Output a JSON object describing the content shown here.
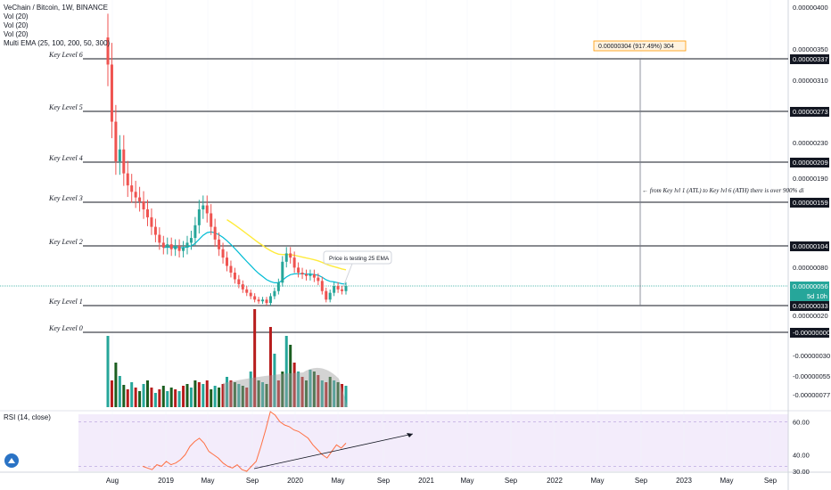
{
  "legend": {
    "title": "VeChain / Bitcoin, 1W, BINANCE",
    "line2": "Vol (20)",
    "line3": "Vol (20)",
    "line4": "Vol (20)",
    "line5": "Multi EMA (25, 100, 200, 50, 300)"
  },
  "rsi_label": "RSI (14, close)",
  "chart_data": {
    "type": "candlestick",
    "symbol": "VeChain / Bitcoin",
    "interval": "1W",
    "exchange": "BINANCE",
    "x_ticks": [
      "Aug",
      "2019",
      "May",
      "Sep",
      "2020",
      "May",
      "Sep",
      "2021",
      "May",
      "Sep",
      "2022",
      "May",
      "Sep",
      "2023",
      "May",
      "Sep"
    ],
    "price_axis_labels": [
      "0.00000400",
      "0.00000350",
      "0.00000310",
      "0.00000230",
      "0.00000190",
      "0.00000080",
      "0.00000020",
      "-0.00000030",
      "-0.00000055",
      "-0.00000077"
    ],
    "key_levels": [
      {
        "label": "Key Level 6",
        "value": "0.00000337"
      },
      {
        "label": "Key Level 5",
        "value": "0.00000273"
      },
      {
        "label": "Key Level 4",
        "value": "0.00000209"
      },
      {
        "label": "Key Level 3",
        "value": "0.00000159"
      },
      {
        "label": "Key Level 2",
        "value": "0.00000104"
      },
      {
        "label": "Key Level 1",
        "value": "0.00000033"
      },
      {
        "label": "Key Level 0",
        "value": "-0.00000000"
      }
    ],
    "current_price": "0.00000056",
    "countdown": "5d 10h",
    "measure_label": "0.00000304 (917.49%) 304",
    "annotation_arrow": "from Key lvl 1 (ATL) to Key lvl 6 (ATH)  there is over 900% di",
    "callout": "Price is testing 25 EMA",
    "rsi_ticks": [
      "60.00",
      "40.00",
      "30.00"
    ],
    "close_prices": [
      3.3e-06,
      2.6e-06,
      2.1e-06,
      2.25e-06,
      1.95e-06,
      1.8e-06,
      1.72e-06,
      1.65e-06,
      1.6e-06,
      1.5e-06,
      1.4e-06,
      1.28e-06,
      1.18e-06,
      1.08e-06,
      1.02e-06,
      1.06e-06,
      1e-06,
      1.04e-06,
      9.8e-07,
      1.02e-06,
      1.08e-06,
      1.14e-06,
      1.3e-06,
      1.5e-06,
      1.55e-06,
      1.45e-06,
      1.28e-06,
      1.12e-06,
      1e-06,
      9e-07,
      8e-07,
      7.2e-07,
      6.4e-07,
      5.8e-07,
      5.2e-07,
      4.8e-07,
      4.4e-07,
      4e-07,
      3.8e-07,
      4e-07,
      3.6e-07,
      4.4e-07,
      5e-07,
      6e-07,
      8.5e-07,
      9.5e-07,
      9e-07,
      7.8e-07,
      7.2e-07,
      7e-07,
      6.8e-07,
      7e-07,
      6.6e-07,
      6.2e-07,
      5e-07,
      4e-07,
      4.8e-07,
      5.6e-07,
      5.2e-07,
      5e-07,
      5.6e-07
    ],
    "rsi_values": [
      33,
      32,
      31,
      34,
      33,
      36,
      34,
      35,
      37,
      40,
      45,
      48,
      50,
      47,
      42,
      40,
      38,
      35,
      33,
      32,
      34,
      31,
      30,
      33,
      36,
      45,
      55,
      66,
      64,
      60,
      58,
      57,
      55,
      54,
      52,
      50,
      46,
      43,
      40,
      38,
      42,
      46,
      44,
      47
    ]
  }
}
